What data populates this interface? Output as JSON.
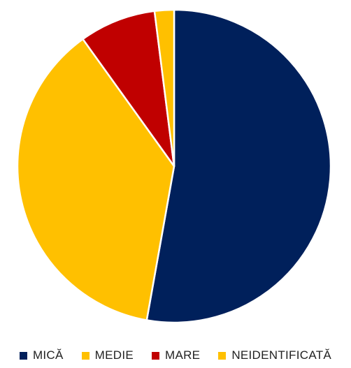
{
  "chart_data": {
    "type": "pie",
    "title": "",
    "start_angle_deg": 90,
    "direction": "clockwise",
    "slices": [
      {
        "label": "MICĂ",
        "value": 52.8,
        "color": "#00205B"
      },
      {
        "label": "MEDIE",
        "value": 37.3,
        "color": "#FFC000"
      },
      {
        "label": "MARE",
        "value": 7.9,
        "color": "#C00000"
      },
      {
        "label": "NEIDENTIFICATĂ",
        "value": 2.0,
        "color": "#FFC000"
      }
    ],
    "legend_position": "bottom",
    "slice_border_color": "#ffffff"
  }
}
